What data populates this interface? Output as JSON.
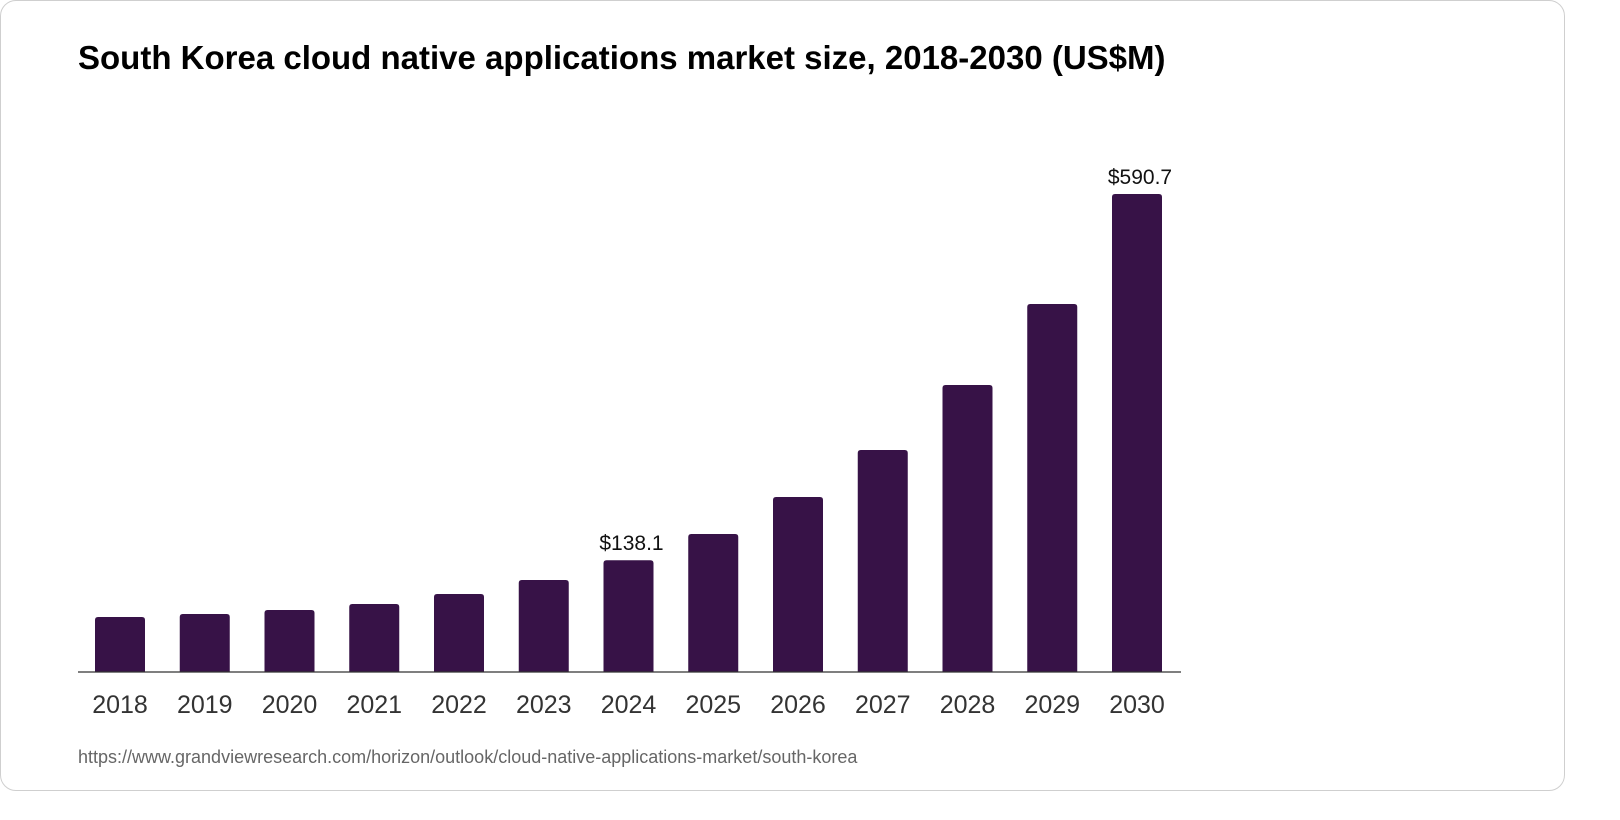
{
  "chart_data": {
    "type": "bar",
    "title": "South Korea cloud native applications market size, 2018-2030 (US$M)",
    "xlabel": "",
    "ylabel": "",
    "categories": [
      "2018",
      "2019",
      "2020",
      "2021",
      "2022",
      "2023",
      "2024",
      "2025",
      "2026",
      "2027",
      "2028",
      "2029",
      "2030"
    ],
    "values": [
      68.0,
      71.7,
      76.6,
      84.0,
      96.4,
      113.7,
      138.1,
      170.5,
      216.3,
      274.3,
      354.7,
      454.7,
      590.7
    ],
    "data_labels": [
      {
        "category": "2024",
        "text": "$138.1"
      },
      {
        "category": "2030",
        "text": "$590.7"
      }
    ],
    "ylim": [
      0,
      590.7
    ],
    "grid": false,
    "legend": "none",
    "bar_color": "#371247"
  },
  "source": "https://www.grandviewresearch.com/horizon/outlook/cloud-native-applications-market/south-korea"
}
